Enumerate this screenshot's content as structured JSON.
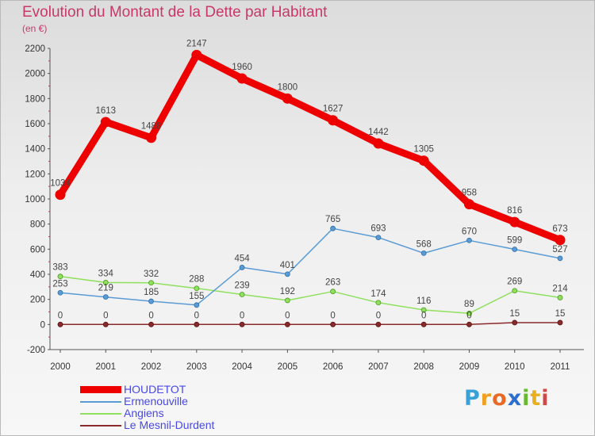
{
  "header": {
    "title": "Evolution du Montant de la Dette par Habitant",
    "subtitle": "(en €)"
  },
  "brand": {
    "letters": [
      "P",
      "r",
      "o",
      "x",
      "i",
      "t",
      "i"
    ],
    "colors": [
      "#3aa0d8",
      "#f0a020",
      "#e86a28",
      "#2c6fd0",
      "#68b830",
      "#e8b020",
      "#d04848"
    ]
  },
  "chart_data": {
    "type": "line",
    "title": "Evolution du Montant de la Dette par Habitant",
    "subtitle": "(en €)",
    "xlabel": "",
    "ylabel": "",
    "x": [
      "2000",
      "2001",
      "2002",
      "2003",
      "2004",
      "2005",
      "2006",
      "2007",
      "2008",
      "2009",
      "2010",
      "2011"
    ],
    "ylim": [
      -200,
      2200
    ],
    "yticks": [
      -200,
      0,
      200,
      400,
      600,
      800,
      1000,
      1200,
      1400,
      1600,
      1800,
      2000,
      2200
    ],
    "grid": false,
    "legend": "bottom-left",
    "series": [
      {
        "name": "HOUDETOT",
        "color": "#ee0000",
        "values": [
          1034,
          1613,
          1488,
          2147,
          1960,
          1800,
          1627,
          1442,
          1305,
          958,
          816,
          673
        ],
        "labels": [
          "1034",
          "1613",
          "1488",
          "2147",
          "1960",
          "1800",
          "1627",
          "1442",
          "1305",
          "958",
          "816",
          "673"
        ]
      },
      {
        "name": "Ermenouville",
        "color": "#5b9bd5",
        "values": [
          253,
          219,
          185,
          155,
          454,
          401,
          765,
          693,
          568,
          670,
          599,
          527
        ],
        "labels": [
          "253",
          "219",
          "185",
          "155",
          "454",
          "401",
          "765",
          "693",
          "568",
          "670",
          "599",
          "527"
        ]
      },
      {
        "name": "Angiens",
        "color": "#90e060",
        "values": [
          383,
          334,
          332,
          288,
          239,
          192,
          263,
          174,
          116,
          89,
          269,
          214
        ],
        "labels": [
          "383",
          "334",
          "332",
          "288",
          "239",
          "192",
          "263",
          "174",
          "116",
          "89",
          "269",
          "214"
        ]
      },
      {
        "name": "Le Mesnil-Durdent",
        "color": "#8b2a2a",
        "values": [
          0,
          0,
          0,
          0,
          0,
          0,
          0,
          0,
          0,
          0,
          15,
          15
        ],
        "labels": [
          "0",
          "0",
          "0",
          "0",
          "0",
          "0",
          "0",
          "0",
          "0",
          "0",
          "15",
          "15"
        ]
      }
    ]
  }
}
